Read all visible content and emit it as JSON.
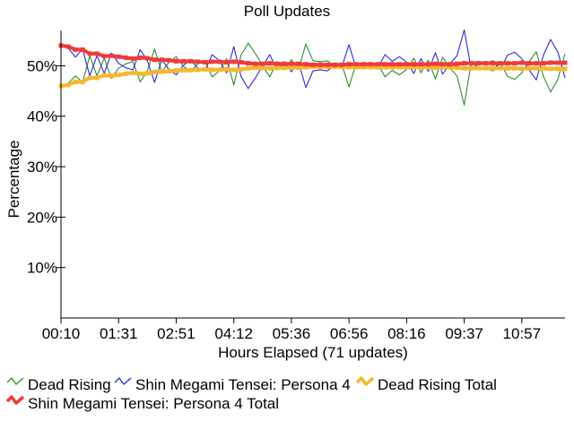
{
  "chart_data": {
    "type": "line",
    "title": "Poll Updates",
    "xlabel": "Hours Elapsed (71 updates)",
    "ylabel": "Percentage",
    "ylim": [
      0,
      57
    ],
    "yticks": [
      10,
      20,
      30,
      40,
      50
    ],
    "ytick_labels": [
      "10%",
      "20%",
      "30%",
      "40%",
      "50%"
    ],
    "x_range_updates": [
      0,
      70
    ],
    "xtick_updates": [
      0,
      8,
      16,
      24,
      32,
      40,
      48,
      56,
      64
    ],
    "xtick_labels": [
      "00:10",
      "01:31",
      "02:51",
      "04:12",
      "05:36",
      "06:56",
      "08:16",
      "09:37",
      "10:57"
    ],
    "grid": false,
    "legend_position": "bottom",
    "series": [
      {
        "name": "Dead Rising",
        "color": "#2e8b2e",
        "marker": "thin-line",
        "values": [
          46.0,
          46.5,
          48.0,
          46.7,
          52.0,
          48.0,
          51.5,
          47.5,
          49.5,
          50.4,
          50.8,
          46.8,
          49.0,
          53.3,
          48.8,
          50.7,
          51.8,
          49.9,
          48.9,
          50.4,
          50.9,
          47.8,
          49.0,
          51.4,
          46.2,
          52.1,
          54.5,
          52.4,
          50.0,
          47.8,
          50.8,
          49.2,
          51.2,
          49.3,
          54.3,
          51.0,
          50.8,
          51.0,
          49.9,
          50.3,
          45.8,
          50.6,
          49.5,
          50.2,
          50.4,
          47.8,
          49.1,
          48.2,
          49.3,
          51.5,
          48.6,
          51.1,
          47.4,
          51.7,
          49.6,
          48.0,
          42.2,
          50.8,
          49.5,
          49.5,
          49.0,
          50.8,
          47.9,
          47.3,
          48.6,
          50.8,
          52.8,
          47.9,
          44.8,
          47.3,
          52.4
        ]
      },
      {
        "name": "Shin Megami Tensei: Persona 4",
        "color": "#2a2ad8",
        "marker": "thin-line",
        "values": [
          54.0,
          53.5,
          51.7,
          53.3,
          48.0,
          52.0,
          48.5,
          52.5,
          50.5,
          49.6,
          49.2,
          53.2,
          51.0,
          46.7,
          51.2,
          49.3,
          48.2,
          50.1,
          51.1,
          49.6,
          49.1,
          52.2,
          51.0,
          48.6,
          53.8,
          47.9,
          45.5,
          47.6,
          50.0,
          52.2,
          49.2,
          50.8,
          48.8,
          50.7,
          45.7,
          49.0,
          49.2,
          49.0,
          50.1,
          49.7,
          54.2,
          49.4,
          50.5,
          49.8,
          49.6,
          52.2,
          50.9,
          51.8,
          50.7,
          48.5,
          51.4,
          48.9,
          52.6,
          48.3,
          50.4,
          52.0,
          57.1,
          49.2,
          50.5,
          50.5,
          51.0,
          49.2,
          52.1,
          52.7,
          51.4,
          49.2,
          47.2,
          52.1,
          55.2,
          52.7,
          47.6
        ]
      },
      {
        "name": "Dead Rising Total",
        "color": "#f5b82e",
        "marker": "thick-line",
        "values": [
          46.0,
          46.2,
          46.8,
          46.8,
          47.6,
          47.6,
          48.1,
          48.0,
          48.2,
          48.4,
          48.6,
          48.4,
          48.5,
          48.8,
          48.8,
          48.9,
          49.1,
          49.1,
          49.1,
          49.2,
          49.3,
          49.2,
          49.2,
          49.3,
          49.2,
          49.3,
          49.5,
          49.6,
          49.6,
          49.5,
          49.6,
          49.6,
          49.6,
          49.6,
          49.7,
          49.8,
          49.8,
          49.8,
          49.8,
          49.8,
          49.7,
          49.7,
          49.7,
          49.7,
          49.7,
          49.7,
          49.7,
          49.7,
          49.7,
          49.7,
          49.7,
          49.7,
          49.6,
          49.7,
          49.7,
          49.6,
          49.5,
          49.5,
          49.5,
          49.5,
          49.5,
          49.5,
          49.5,
          49.5,
          49.4,
          49.5,
          49.5,
          49.5,
          49.4,
          49.4,
          49.4
        ]
      },
      {
        "name": "Shin Megami Tensei: Persona 4 Total",
        "color": "#ef3b3b",
        "marker": "thick-line",
        "values": [
          54.0,
          53.8,
          53.2,
          53.2,
          52.4,
          52.4,
          51.9,
          52.0,
          51.8,
          51.6,
          51.4,
          51.6,
          51.5,
          51.2,
          51.2,
          51.1,
          50.9,
          50.9,
          50.9,
          50.8,
          50.7,
          50.8,
          50.8,
          50.7,
          50.8,
          50.7,
          50.5,
          50.4,
          50.4,
          50.5,
          50.4,
          50.4,
          50.4,
          50.4,
          50.3,
          50.2,
          50.2,
          50.2,
          50.2,
          50.2,
          50.3,
          50.3,
          50.3,
          50.3,
          50.3,
          50.3,
          50.3,
          50.3,
          50.3,
          50.3,
          50.3,
          50.3,
          50.4,
          50.3,
          50.3,
          50.4,
          50.5,
          50.5,
          50.5,
          50.5,
          50.5,
          50.5,
          50.5,
          50.5,
          50.6,
          50.5,
          50.5,
          50.5,
          50.6,
          50.6,
          50.6
        ]
      }
    ]
  }
}
